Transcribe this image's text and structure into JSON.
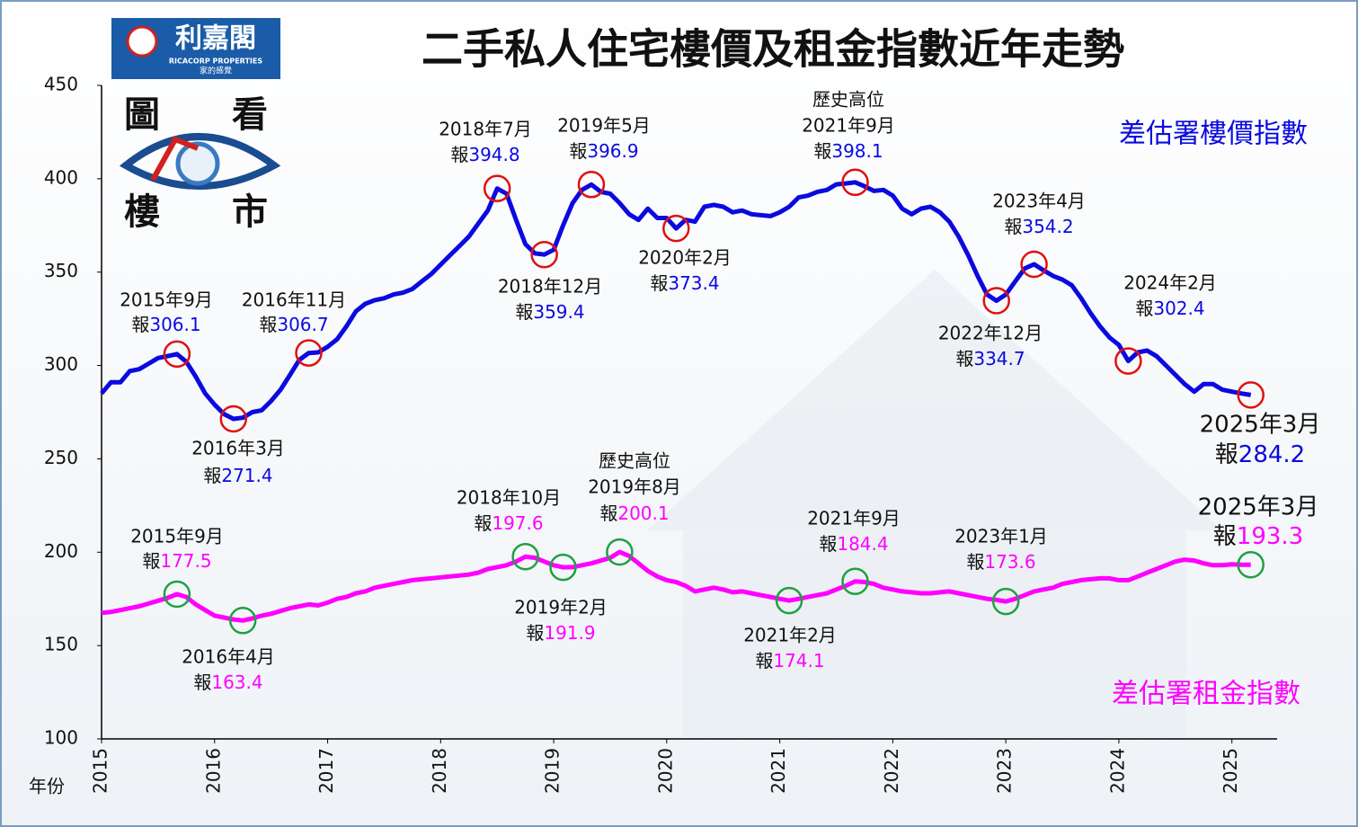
{
  "logo": {
    "brand": "利嘉閣",
    "english": "RICACORP PROPERTIES",
    "slogan": "家的感覺",
    "corner_words": [
      "圖",
      "看",
      "樓",
      "市"
    ]
  },
  "chart_data": {
    "type": "line",
    "title": "二手私人住宅樓價及租金指數近年走勢",
    "x_label": "年份",
    "xlim": [
      2015,
      2025.4
    ],
    "xticks": [
      2015,
      2016,
      2017,
      2018,
      2019,
      2020,
      2021,
      2022,
      2023,
      2024,
      2025
    ],
    "ylim": [
      100,
      450
    ],
    "yticks": [
      100,
      150,
      200,
      250,
      300,
      350,
      400,
      450
    ],
    "x": [
      2015,
      2015.083,
      2015.167,
      2015.25,
      2015.333,
      2015.417,
      2015.5,
      2015.583,
      2015.667,
      2015.75,
      2015.833,
      2015.917,
      2016,
      2016.083,
      2016.167,
      2016.25,
      2016.333,
      2016.417,
      2016.5,
      2016.583,
      2016.667,
      2016.75,
      2016.833,
      2016.917,
      2017,
      2017.083,
      2017.167,
      2017.25,
      2017.333,
      2017.417,
      2017.5,
      2017.583,
      2017.667,
      2017.75,
      2017.833,
      2017.917,
      2018,
      2018.083,
      2018.167,
      2018.25,
      2018.333,
      2018.417,
      2018.5,
      2018.583,
      2018.667,
      2018.75,
      2018.833,
      2018.917,
      2019,
      2019.083,
      2019.167,
      2019.25,
      2019.333,
      2019.417,
      2019.5,
      2019.583,
      2019.667,
      2019.75,
      2019.833,
      2019.917,
      2020,
      2020.083,
      2020.167,
      2020.25,
      2020.333,
      2020.417,
      2020.5,
      2020.583,
      2020.667,
      2020.75,
      2020.833,
      2020.917,
      2021,
      2021.083,
      2021.167,
      2021.25,
      2021.333,
      2021.417,
      2021.5,
      2021.583,
      2021.667,
      2021.75,
      2021.833,
      2021.917,
      2022,
      2022.083,
      2022.167,
      2022.25,
      2022.333,
      2022.417,
      2022.5,
      2022.583,
      2022.667,
      2022.75,
      2022.833,
      2022.917,
      2023,
      2023.083,
      2023.167,
      2023.25,
      2023.333,
      2023.417,
      2023.5,
      2023.583,
      2023.667,
      2023.75,
      2023.833,
      2023.917,
      2024,
      2024.083,
      2024.167,
      2024.25,
      2024.333,
      2024.417,
      2024.5,
      2024.583,
      2024.667,
      2024.75,
      2024.833,
      2024.917,
      2025,
      2025.083,
      2025.167
    ],
    "series": [
      {
        "name": "差估署樓價指數",
        "color": "#0a0ae0",
        "marker_color": "#e01010",
        "values": [
          285,
          291,
          291,
          297,
          298,
          301,
          304,
          305,
          306.1,
          302,
          294,
          285,
          279,
          274,
          271.4,
          272,
          275,
          276,
          281,
          287,
          295,
          303,
          306.7,
          307,
          310,
          314,
          321,
          329,
          333,
          335,
          336,
          338,
          339,
          341,
          345,
          349,
          354,
          359,
          364,
          369,
          376,
          383,
          394.8,
          392,
          378,
          365,
          360,
          359.4,
          362,
          375,
          387,
          394,
          396.9,
          393,
          392,
          387,
          381,
          378,
          384,
          379,
          379,
          373.4,
          378,
          377,
          385,
          386,
          385,
          382,
          383,
          381,
          380.5,
          380,
          382,
          385,
          390,
          391,
          393,
          394,
          397,
          397.5,
          398.1,
          396,
          393.5,
          394,
          391,
          384,
          381,
          384,
          385,
          382,
          377,
          369,
          359,
          348,
          338,
          334.7,
          338,
          345,
          352,
          354.2,
          351,
          348,
          346,
          343,
          336,
          328,
          321,
          315,
          311,
          302.4,
          307,
          308,
          305,
          300,
          295,
          290,
          286,
          290,
          290,
          287,
          286,
          285,
          284.2
        ],
        "annotations": [
          {
            "x": 2015.667,
            "date": "2015年9月",
            "prefix": "報",
            "value": 306.1
          },
          {
            "x": 2016.167,
            "date": "2016年3月",
            "prefix": "報",
            "value": 271.4
          },
          {
            "x": 2016.833,
            "date": "2016年11月",
            "prefix": "報",
            "value": 306.7
          },
          {
            "x": 2018.5,
            "date": "2018年7月",
            "prefix": "報",
            "value": 394.8
          },
          {
            "x": 2018.917,
            "date": "2018年12月",
            "prefix": "報",
            "value": 359.4
          },
          {
            "x": 2019.333,
            "date": "2019年5月",
            "prefix": "報",
            "value": 396.9
          },
          {
            "x": 2020.083,
            "date": "2020年2月",
            "prefix": "報",
            "value": 373.4
          },
          {
            "x": 2021.667,
            "note": "歷史高位",
            "date": "2021年9月",
            "prefix": "報",
            "value": 398.1
          },
          {
            "x": 2022.917,
            "date": "2022年12月",
            "prefix": "報",
            "value": 334.7
          },
          {
            "x": 2023.25,
            "date": "2023年4月",
            "prefix": "報",
            "value": 354.2
          },
          {
            "x": 2024.083,
            "date": "2024年2月",
            "prefix": "報",
            "value": 302.4
          },
          {
            "x": 2025.167,
            "date": "2025年3月",
            "prefix": "報",
            "value": 284.2
          }
        ]
      },
      {
        "name": "差估署租金指數",
        "color": "#ff00ff",
        "marker_color": "#20a040",
        "values": [
          167.5,
          168,
          169,
          170,
          171,
          172.5,
          174,
          175.5,
          177.5,
          176,
          172,
          169,
          166,
          165,
          164,
          163.4,
          164.5,
          166,
          167,
          168.5,
          170,
          171,
          172,
          171.5,
          173,
          175,
          176,
          178,
          179,
          181,
          182,
          183,
          184,
          185,
          185.5,
          186,
          186.5,
          187,
          187.5,
          188,
          189,
          191,
          192,
          193,
          195,
          197.6,
          197,
          195,
          193,
          191.9,
          192,
          193,
          194,
          195.5,
          197,
          200.1,
          198,
          194,
          190,
          187,
          185,
          184,
          182,
          179,
          180,
          181,
          180,
          178.5,
          179,
          178,
          177,
          176,
          175,
          174.1,
          175,
          176,
          177,
          178,
          180,
          182,
          184.4,
          184,
          183,
          181,
          180,
          179,
          178.5,
          178,
          178,
          178.5,
          179,
          178,
          177,
          176,
          175,
          174.5,
          173.6,
          175,
          177,
          179,
          180,
          181,
          183,
          184,
          185,
          185.5,
          186,
          186,
          185,
          185,
          187,
          189,
          191,
          193,
          195,
          196,
          195.5,
          194,
          193,
          193,
          193.5,
          193.3,
          193.3
        ],
        "annotations": [
          {
            "x": 2015.667,
            "date": "2015年9月",
            "prefix": "報",
            "value": 177.5
          },
          {
            "x": 2016.25,
            "date": "2016年4月",
            "prefix": "報",
            "value": 163.4
          },
          {
            "x": 2018.75,
            "date": "2018年10月",
            "prefix": "報",
            "value": 197.6
          },
          {
            "x": 2019.083,
            "date": "2019年2月",
            "prefix": "報",
            "value": 191.9
          },
          {
            "x": 2019.583,
            "note": "歷史高位",
            "date": "2019年8月",
            "prefix": "報",
            "value": 200.1
          },
          {
            "x": 2021.083,
            "date": "2021年2月",
            "prefix": "報",
            "value": 174.1
          },
          {
            "x": 2021.667,
            "date": "2021年9月",
            "prefix": "報",
            "value": 184.4
          },
          {
            "x": 2023,
            "date": "2023年1月",
            "prefix": "報",
            "value": 173.6
          },
          {
            "x": 2025.167,
            "date": "2025年3月",
            "prefix": "報",
            "value": 193.3
          }
        ]
      }
    ]
  }
}
